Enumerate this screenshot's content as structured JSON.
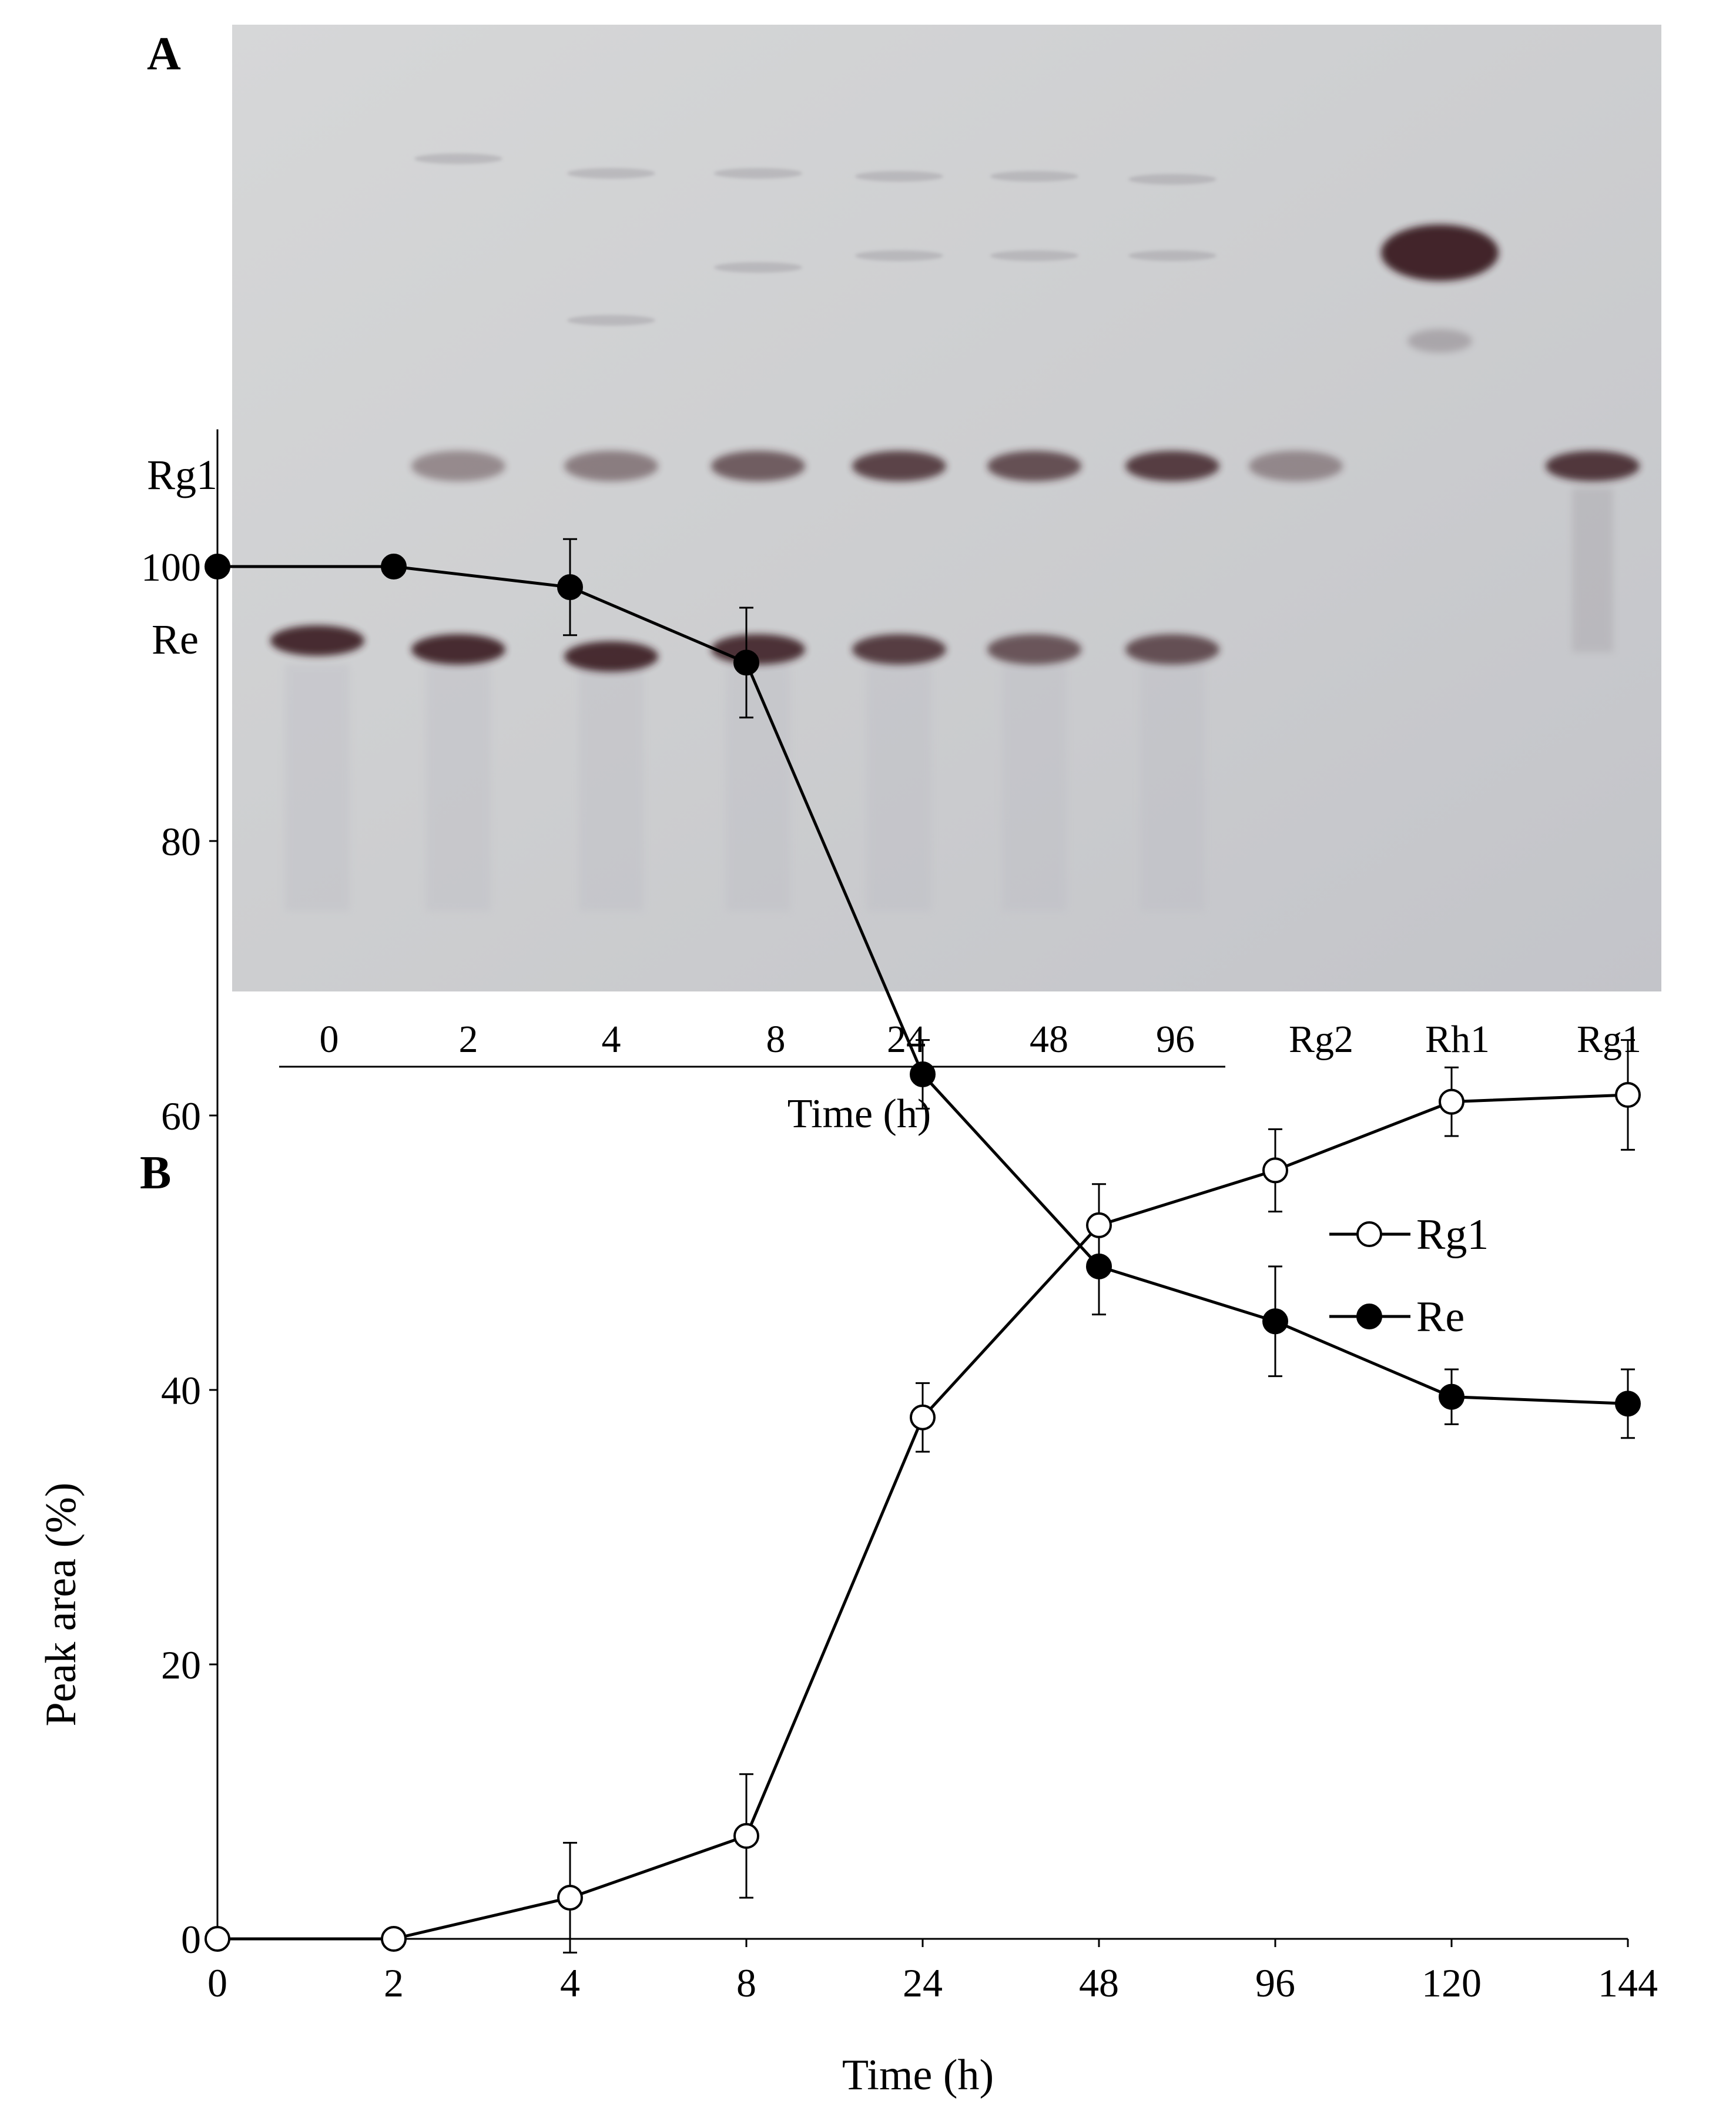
{
  "panel_a": {
    "panel_label": "A",
    "row_labels": [
      "Rg1",
      "Re"
    ],
    "lane_labels": [
      "0",
      "2",
      "4",
      "8",
      "24",
      "48",
      "96",
      "Rg2",
      "Rh1",
      "Rg1"
    ],
    "axis_label": "Time (h)",
    "spots": [
      {
        "lane": "0",
        "band": "Re",
        "intensity": 0.95
      },
      {
        "lane": "2",
        "band": "Re",
        "intensity": 0.95
      },
      {
        "lane": "2",
        "band": "Rg1",
        "intensity": 0.2
      },
      {
        "lane": "4",
        "band": "Re",
        "intensity": 0.95
      },
      {
        "lane": "4",
        "band": "Rg1",
        "intensity": 0.3
      },
      {
        "lane": "8",
        "band": "Re",
        "intensity": 0.9
      },
      {
        "lane": "8",
        "band": "Rg1",
        "intensity": 0.55
      },
      {
        "lane": "24",
        "band": "Re",
        "intensity": 0.8
      },
      {
        "lane": "24",
        "band": "Rg1",
        "intensity": 0.75
      },
      {
        "lane": "48",
        "band": "Re",
        "intensity": 0.6
      },
      {
        "lane": "48",
        "band": "Rg1",
        "intensity": 0.65
      },
      {
        "lane": "96",
        "band": "Re",
        "intensity": 0.65
      },
      {
        "lane": "96",
        "band": "Rg1",
        "intensity": 0.8
      },
      {
        "lane": "Rg2",
        "band": "Rg1",
        "intensity": 0.2
      },
      {
        "lane": "Rh1",
        "band": "Rh1",
        "intensity": 1.0
      },
      {
        "lane": "Rg1",
        "band": "Rg1",
        "intensity": 0.85
      }
    ],
    "colors": {
      "plate": "#cfd0d2",
      "spot": "#3a1e22"
    }
  },
  "chart_data": {
    "panel_label": "B",
    "type": "line",
    "x": [
      "0",
      "2",
      "4",
      "8",
      "24",
      "48",
      "96",
      "120",
      "144"
    ],
    "xlabel": "Time (h)",
    "ylabel": "Peak area (%)",
    "ylim": [
      0,
      110
    ],
    "yticks": [
      "0",
      "20",
      "40",
      "60",
      "80",
      "100"
    ],
    "legend_position": "top-right",
    "series": [
      {
        "name": "Rg1",
        "marker": "open-circle",
        "values": [
          0,
          0,
          3,
          7.5,
          38,
          52,
          56,
          61,
          61.5
        ],
        "errors": [
          0,
          0,
          4,
          4.5,
          2.5,
          3,
          3,
          2.5,
          4
        ]
      },
      {
        "name": "Re",
        "marker": "filled-circle",
        "values": [
          100,
          100,
          98.5,
          93,
          63,
          49,
          45,
          39.5,
          39
        ],
        "errors": [
          0,
          0,
          3.5,
          4,
          2.5,
          3.5,
          4,
          2,
          2.5
        ]
      }
    ],
    "grid": false
  }
}
